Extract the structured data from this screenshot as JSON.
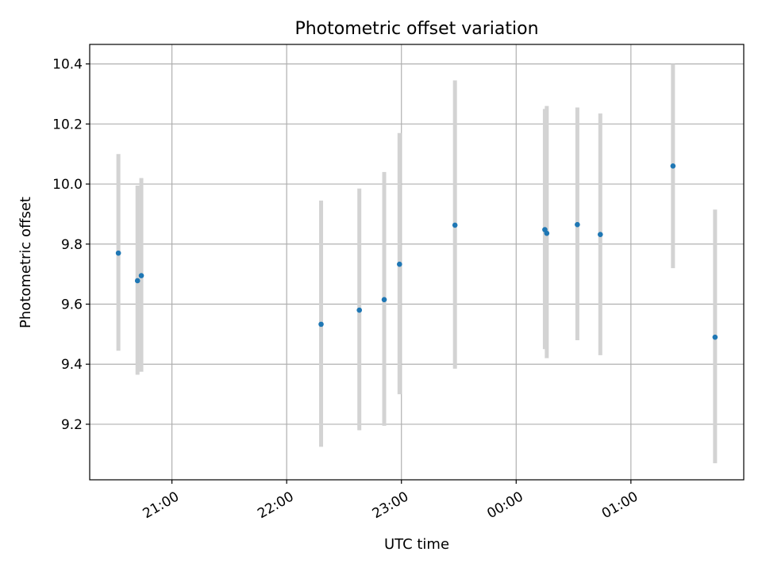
{
  "chart_data": {
    "type": "scatter",
    "title": "Photometric offset variation",
    "xlabel": "UTC time",
    "ylabel": "Photometric offset",
    "x_axis_type": "time",
    "xlim": [
      "20:17",
      "01:59"
    ],
    "ylim": [
      9.015,
      10.465
    ],
    "x_ticks": [
      "21:00",
      "22:00",
      "23:00",
      "00:00",
      "01:00"
    ],
    "y_ticks": [
      9.2,
      9.4,
      9.6,
      9.8,
      10.0,
      10.2,
      10.4
    ],
    "grid": true,
    "colors": {
      "point": "#1f77b4",
      "errorbar": "#d3d3d3",
      "grid": "#b0b0b0"
    },
    "points": [
      {
        "x": "20:32",
        "y": 9.77,
        "ylow": 9.445,
        "yhigh": 10.1
      },
      {
        "x": "20:42",
        "y": 9.678,
        "ylow": 9.365,
        "yhigh": 9.995
      },
      {
        "x": "20:44",
        "y": 9.695,
        "ylow": 9.375,
        "yhigh": 10.02
      },
      {
        "x": "22:18",
        "y": 9.533,
        "ylow": 9.125,
        "yhigh": 9.945
      },
      {
        "x": "22:38",
        "y": 9.58,
        "ylow": 9.18,
        "yhigh": 9.985
      },
      {
        "x": "22:51",
        "y": 9.615,
        "ylow": 9.195,
        "yhigh": 10.04
      },
      {
        "x": "22:59",
        "y": 9.733,
        "ylow": 9.3,
        "yhigh": 10.17
      },
      {
        "x": "23:28",
        "y": 9.863,
        "ylow": 9.385,
        "yhigh": 10.345
      },
      {
        "x": "00:15",
        "y": 9.848,
        "ylow": 9.45,
        "yhigh": 10.25
      },
      {
        "x": "00:16",
        "y": 9.836,
        "ylow": 9.42,
        "yhigh": 10.26
      },
      {
        "x": "00:32",
        "y": 9.865,
        "ylow": 9.48,
        "yhigh": 10.255
      },
      {
        "x": "00:44",
        "y": 9.832,
        "ylow": 9.43,
        "yhigh": 10.235
      },
      {
        "x": "01:22",
        "y": 10.06,
        "ylow": 9.72,
        "yhigh": 10.4
      },
      {
        "x": "01:44",
        "y": 9.49,
        "ylow": 9.07,
        "yhigh": 9.915
      }
    ]
  }
}
